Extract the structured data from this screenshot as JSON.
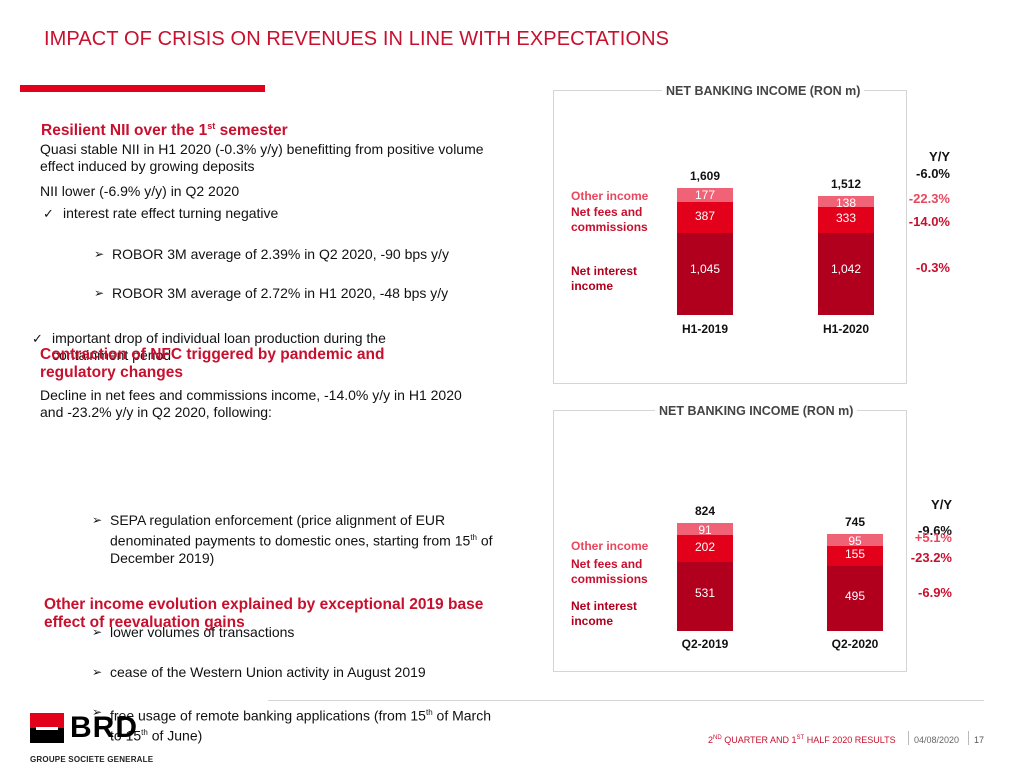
{
  "title": "IMPACT OF CRISIS ON REVENUES IN LINE WITH EXPECTATIONS",
  "left": {
    "h1": "Resilient NII over the 1st semester",
    "h1_pre": "Resilient NII over the 1",
    "h1_sup": "st",
    "h1_post": " semester",
    "p1": "Quasi stable NII in H1 2020 (-0.3% y/y) benefitting from positive volume effect induced by growing deposits",
    "p2": "NII lower (-6.9% y/y) in Q2 2020",
    "c1": "interest rate effect turning negative",
    "a1": "ROBOR 3M average of 2.39% in Q2 2020, -90 bps y/y",
    "a2": "ROBOR 3M average of 2.72% in H1 2020, -48 bps y/y",
    "c2": "important drop of individual loan production during the containment period",
    "h2": "Contraction of NFC triggered by pandemic and regulatory changes",
    "p3": "Decline in net fees and commissions income, -14.0% y/y in H1 2020 and -23.2% y/y in Q2 2020, following:",
    "a3_pre": "SEPA regulation enforcement (price alignment of EUR denominated payments to domestic ones, starting from 15",
    "a3_sup": "th",
    "a3_post": " of December 2019)",
    "a4": "lower volumes of transactions",
    "a5": "cease of the Western Union activity in August 2019",
    "a6_pre": "free usage of remote banking applications (from 15",
    "a6_sup": "th",
    "a6_mid": " of March to 15",
    "a6_sup2": "th",
    "a6_post": " of June)",
    "h3": "Other income evolution explained by exceptional 2019 base effect of reevaluation gains"
  },
  "chart_data": [
    {
      "type": "bar",
      "stacked": true,
      "title": "NET BANKING INCOME (RON m)",
      "categories": [
        "H1-2019",
        "H1-2020"
      ],
      "series": [
        {
          "name": "Net interest income",
          "values": [
            1045,
            1042
          ],
          "yoy": "-0.3%"
        },
        {
          "name": "Net fees and commissions",
          "values": [
            387,
            333
          ],
          "yoy": "-14.0%"
        },
        {
          "name": "Other income",
          "values": [
            177,
            138
          ],
          "yoy": "-22.3%"
        }
      ],
      "totals": [
        "1,609",
        "1,512"
      ],
      "total_values": [
        1609,
        1512
      ],
      "labels": {
        "interest": [
          "1,045",
          "1,042"
        ],
        "fees": [
          "387",
          "333"
        ],
        "other": [
          "177",
          "138"
        ]
      },
      "yoy_header": "Y/Y",
      "yoy_total": "-6.0%",
      "yoy": {
        "interest": "-0.3%",
        "fees": "-14.0%",
        "other": "-22.3%"
      }
    },
    {
      "type": "bar",
      "stacked": true,
      "title": "NET BANKING INCOME (RON m)",
      "categories": [
        "Q2-2019",
        "Q2-2020"
      ],
      "series": [
        {
          "name": "Net interest income",
          "values": [
            531,
            495
          ],
          "yoy": "-6.9%"
        },
        {
          "name": "Net fees and commissions",
          "values": [
            202,
            155
          ],
          "yoy": "-23.2%"
        },
        {
          "name": "Other income",
          "values": [
            91,
            95
          ],
          "yoy": "+5.1%"
        }
      ],
      "totals": [
        "824",
        "745"
      ],
      "total_values": [
        824,
        745
      ],
      "labels": {
        "interest": [
          "531",
          "495"
        ],
        "fees": [
          "202",
          "155"
        ],
        "other": [
          "91",
          "95"
        ]
      },
      "yoy_header": "Y/Y",
      "yoy_total": "-9.6%",
      "yoy": {
        "interest": "-6.9%",
        "fees": "-23.2%",
        "other": "+5.1%"
      }
    }
  ],
  "legend": {
    "other": "Other income",
    "fees": "Net fees and commissions",
    "interest": "Net interest income"
  },
  "colors": {
    "interest": "#b0001e",
    "fees": "#e3001b",
    "other": "#f06276",
    "other_text": "#e8485e",
    "brand": "#c8102e"
  },
  "footer": {
    "text_a": "2",
    "sup_a": "ND",
    "text_b": " QUARTER AND 1",
    "sup_b": "ST",
    "text_c": " HALF 2020 RESULTS",
    "date": "04/08/2020",
    "page": "17"
  },
  "logo": {
    "name": "BRD",
    "tagline": "GROUPE SOCIETE GENERALE"
  }
}
